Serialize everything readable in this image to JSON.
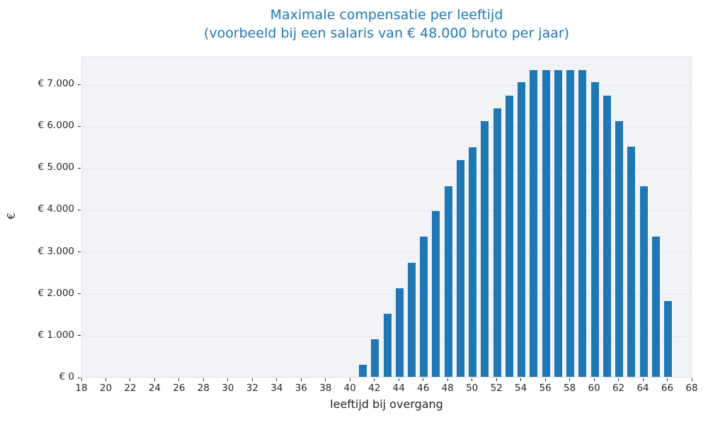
{
  "chart_data": {
    "type": "bar",
    "title": "Maximale compensatie per leeftijd",
    "subtitle": "(voorbeeld bij een salaris van € 48.000 bruto per jaar)",
    "xlabel": "leeftijd bij overgang",
    "ylabel": "€",
    "categories": [
      41,
      42,
      43,
      44,
      45,
      46,
      47,
      48,
      49,
      50,
      51,
      52,
      53,
      54,
      55,
      56,
      57,
      58,
      59,
      60,
      61,
      62,
      63,
      64,
      65,
      66
    ],
    "values": [
      280,
      890,
      1510,
      2120,
      2730,
      3340,
      3950,
      4550,
      5180,
      5480,
      6100,
      6410,
      6720,
      7030,
      7330,
      7330,
      7330,
      7330,
      7330,
      7030,
      6720,
      6100,
      5490,
      4550,
      3340,
      1810
    ],
    "x_ticks": [
      18,
      20,
      22,
      24,
      26,
      28,
      30,
      32,
      34,
      36,
      38,
      40,
      42,
      44,
      46,
      48,
      50,
      52,
      54,
      56,
      58,
      60,
      62,
      64,
      66,
      68
    ],
    "y_ticks": [
      {
        "value": 0,
        "label": "€ 0"
      },
      {
        "value": 1000,
        "label": "€ 1.000"
      },
      {
        "value": 2000,
        "label": "€ 2.000"
      },
      {
        "value": 3000,
        "label": "€ 3.000"
      },
      {
        "value": 4000,
        "label": "€ 4.000"
      },
      {
        "value": 5000,
        "label": "€ 5.000"
      },
      {
        "value": 6000,
        "label": "€ 6.000"
      },
      {
        "value": 7000,
        "label": "€ 7.000"
      }
    ],
    "xlim": [
      18,
      68
    ],
    "ylim": [
      0,
      7660
    ],
    "grid": true,
    "legend": false,
    "bar_color": "#1f77b4",
    "title_color": "#1f77b4",
    "plot_background": "#f2f3f7"
  }
}
